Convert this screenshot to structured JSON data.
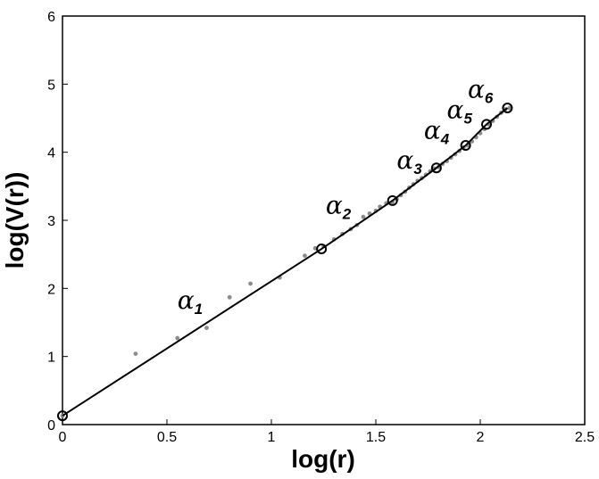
{
  "chart_data": {
    "type": "scatter",
    "title": "",
    "xlabel": "log(r)",
    "ylabel": "log(V(r))",
    "xlim": [
      0,
      2.5
    ],
    "ylim": [
      0,
      6
    ],
    "grid": false,
    "x_ticks": [
      0,
      0.5,
      1,
      1.5,
      2,
      2.5
    ],
    "x_tick_labels": [
      "0",
      "0.5",
      "1",
      "1.5",
      "2",
      "2.5"
    ],
    "y_ticks": [
      0,
      1,
      2,
      3,
      4,
      5,
      6
    ],
    "y_tick_labels": [
      "0",
      "1",
      "2",
      "3",
      "4",
      "5",
      "6"
    ],
    "scatter_points": {
      "x": [
        0,
        0.35,
        0.55,
        0.69,
        0.8,
        0.9,
        1.04,
        1.16,
        1.21,
        1.25,
        1.3,
        1.34,
        1.38,
        1.41,
        1.44,
        1.47,
        1.5,
        1.52,
        1.55,
        1.58,
        1.6,
        1.62,
        1.64,
        1.66,
        1.68,
        1.7,
        1.72,
        1.74,
        1.76,
        1.78,
        1.8,
        1.82,
        1.84,
        1.86,
        1.88,
        1.9,
        1.92,
        1.94,
        1.96,
        1.98,
        2.0,
        2.02,
        2.04,
        2.06,
        2.08,
        2.1,
        2.12,
        2.14
      ],
      "y": [
        0.13,
        1.04,
        1.27,
        1.42,
        1.87,
        2.07,
        2.16,
        2.48,
        2.59,
        2.62,
        2.72,
        2.8,
        2.87,
        2.93,
        3.05,
        3.1,
        3.14,
        3.2,
        3.25,
        3.27,
        3.31,
        3.37,
        3.42,
        3.48,
        3.53,
        3.58,
        3.62,
        3.67,
        3.72,
        3.76,
        3.78,
        3.83,
        3.87,
        3.92,
        3.97,
        4.02,
        4.07,
        4.1,
        4.16,
        4.22,
        4.28,
        4.34,
        4.41,
        4.46,
        4.52,
        4.58,
        4.63,
        4.65
      ]
    },
    "fit_line": {
      "x": [
        0,
        1.24,
        1.58,
        1.79,
        1.93,
        2.03,
        2.13
      ],
      "y": [
        0.13,
        2.58,
        3.29,
        3.77,
        4.1,
        4.41,
        4.65
      ]
    },
    "breakpoints": {
      "x": [
        0,
        1.24,
        1.58,
        1.79,
        1.93,
        2.03,
        2.13
      ],
      "y": [
        0.13,
        2.58,
        3.29,
        3.77,
        4.1,
        4.41,
        4.65
      ]
    },
    "annotations": [
      {
        "symbol": "α",
        "sub": "1",
        "x": 0.55,
        "y": 1.7
      },
      {
        "symbol": "α",
        "sub": "2",
        "x": 1.26,
        "y": 3.1
      },
      {
        "symbol": "α",
        "sub": "3",
        "x": 1.6,
        "y": 3.76
      },
      {
        "symbol": "α",
        "sub": "4",
        "x": 1.73,
        "y": 4.2
      },
      {
        "symbol": "α",
        "sub": "5",
        "x": 1.84,
        "y": 4.5
      },
      {
        "symbol": "α",
        "sub": "6",
        "x": 1.94,
        "y": 4.8
      }
    ],
    "colors": {
      "scatter": "#8c8c8c",
      "line": "#000000",
      "marker": "#000000"
    }
  }
}
